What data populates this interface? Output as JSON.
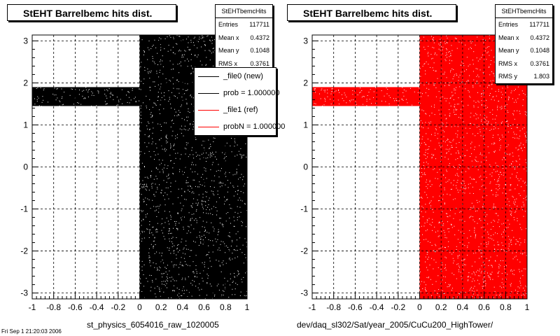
{
  "chart_data": [
    {
      "type": "scatter",
      "title": "StEHT Barrelbemc hits dist.",
      "xlabel": "st_physics_6054016_raw_1020005",
      "ylabel": "",
      "xlim": [
        -1,
        1
      ],
      "ylim": [
        -3.14,
        3.14
      ],
      "xticks": [
        "-1",
        "-0.8",
        "-0.6",
        "-0.4",
        "-0.2",
        "0",
        "0.2",
        "0.4",
        "0.6",
        "0.8",
        "1"
      ],
      "yticks": [
        "-3",
        "-2",
        "-1",
        "0",
        "1",
        "2",
        "3"
      ],
      "grid": true,
      "color": "#000000",
      "regions": [
        {
          "x": [
            0,
            1
          ],
          "y": [
            -3.14,
            3.14
          ]
        },
        {
          "x": [
            -1,
            0
          ],
          "y": [
            1.45,
            1.9
          ]
        }
      ],
      "stats": {
        "name": "StEHTbemcHits",
        "rows": [
          {
            "label": "Entries",
            "value": "117711"
          },
          {
            "label": "Mean x",
            "value": "0.4372"
          },
          {
            "label": "Mean y",
            "value": "0.1048"
          },
          {
            "label": "RMS x",
            "value": "0.3761"
          }
        ]
      },
      "legend": {
        "position": "top-right",
        "entries": [
          {
            "label": "_file0 (new)",
            "color": "#000000"
          },
          {
            "label": "prob = 1.000000",
            "color": "#000000"
          },
          {
            "label": "_file1 (ref)",
            "color": "#ff0000"
          },
          {
            "label": "probN = 1.000000",
            "color": "#ff0000"
          }
        ]
      }
    },
    {
      "type": "scatter",
      "title": "StEHT Barrelbemc hits dist.",
      "xlabel": "dev/daq_sl302/Sat/year_2005/CuCu200_HighTower/",
      "ylabel": "",
      "xlim": [
        -1,
        1
      ],
      "ylim": [
        -3.14,
        3.14
      ],
      "xticks": [
        "-1",
        "-0.8",
        "-0.6",
        "-0.4",
        "-0.2",
        "0",
        "0.2",
        "0.4",
        "0.6",
        "0.8",
        "1"
      ],
      "yticks": [
        "-3",
        "-2",
        "-1",
        "0",
        "1",
        "2",
        "3"
      ],
      "grid": true,
      "color": "#ff0000",
      "regions": [
        {
          "x": [
            0,
            1
          ],
          "y": [
            -3.14,
            3.14
          ]
        },
        {
          "x": [
            -1,
            0
          ],
          "y": [
            1.45,
            1.9
          ]
        }
      ],
      "stats": {
        "name": "StEHTbemcHits",
        "rows": [
          {
            "label": "Entries",
            "value": "117711"
          },
          {
            "label": "Mean x",
            "value": "0.4372"
          },
          {
            "label": "Mean y",
            "value": "0.1048"
          },
          {
            "label": "RMS x",
            "value": "0.3761"
          },
          {
            "label": "RMS y",
            "value": "1.803"
          }
        ]
      }
    }
  ],
  "footer_text": "Fri Sep 1 21:20:03 2006"
}
